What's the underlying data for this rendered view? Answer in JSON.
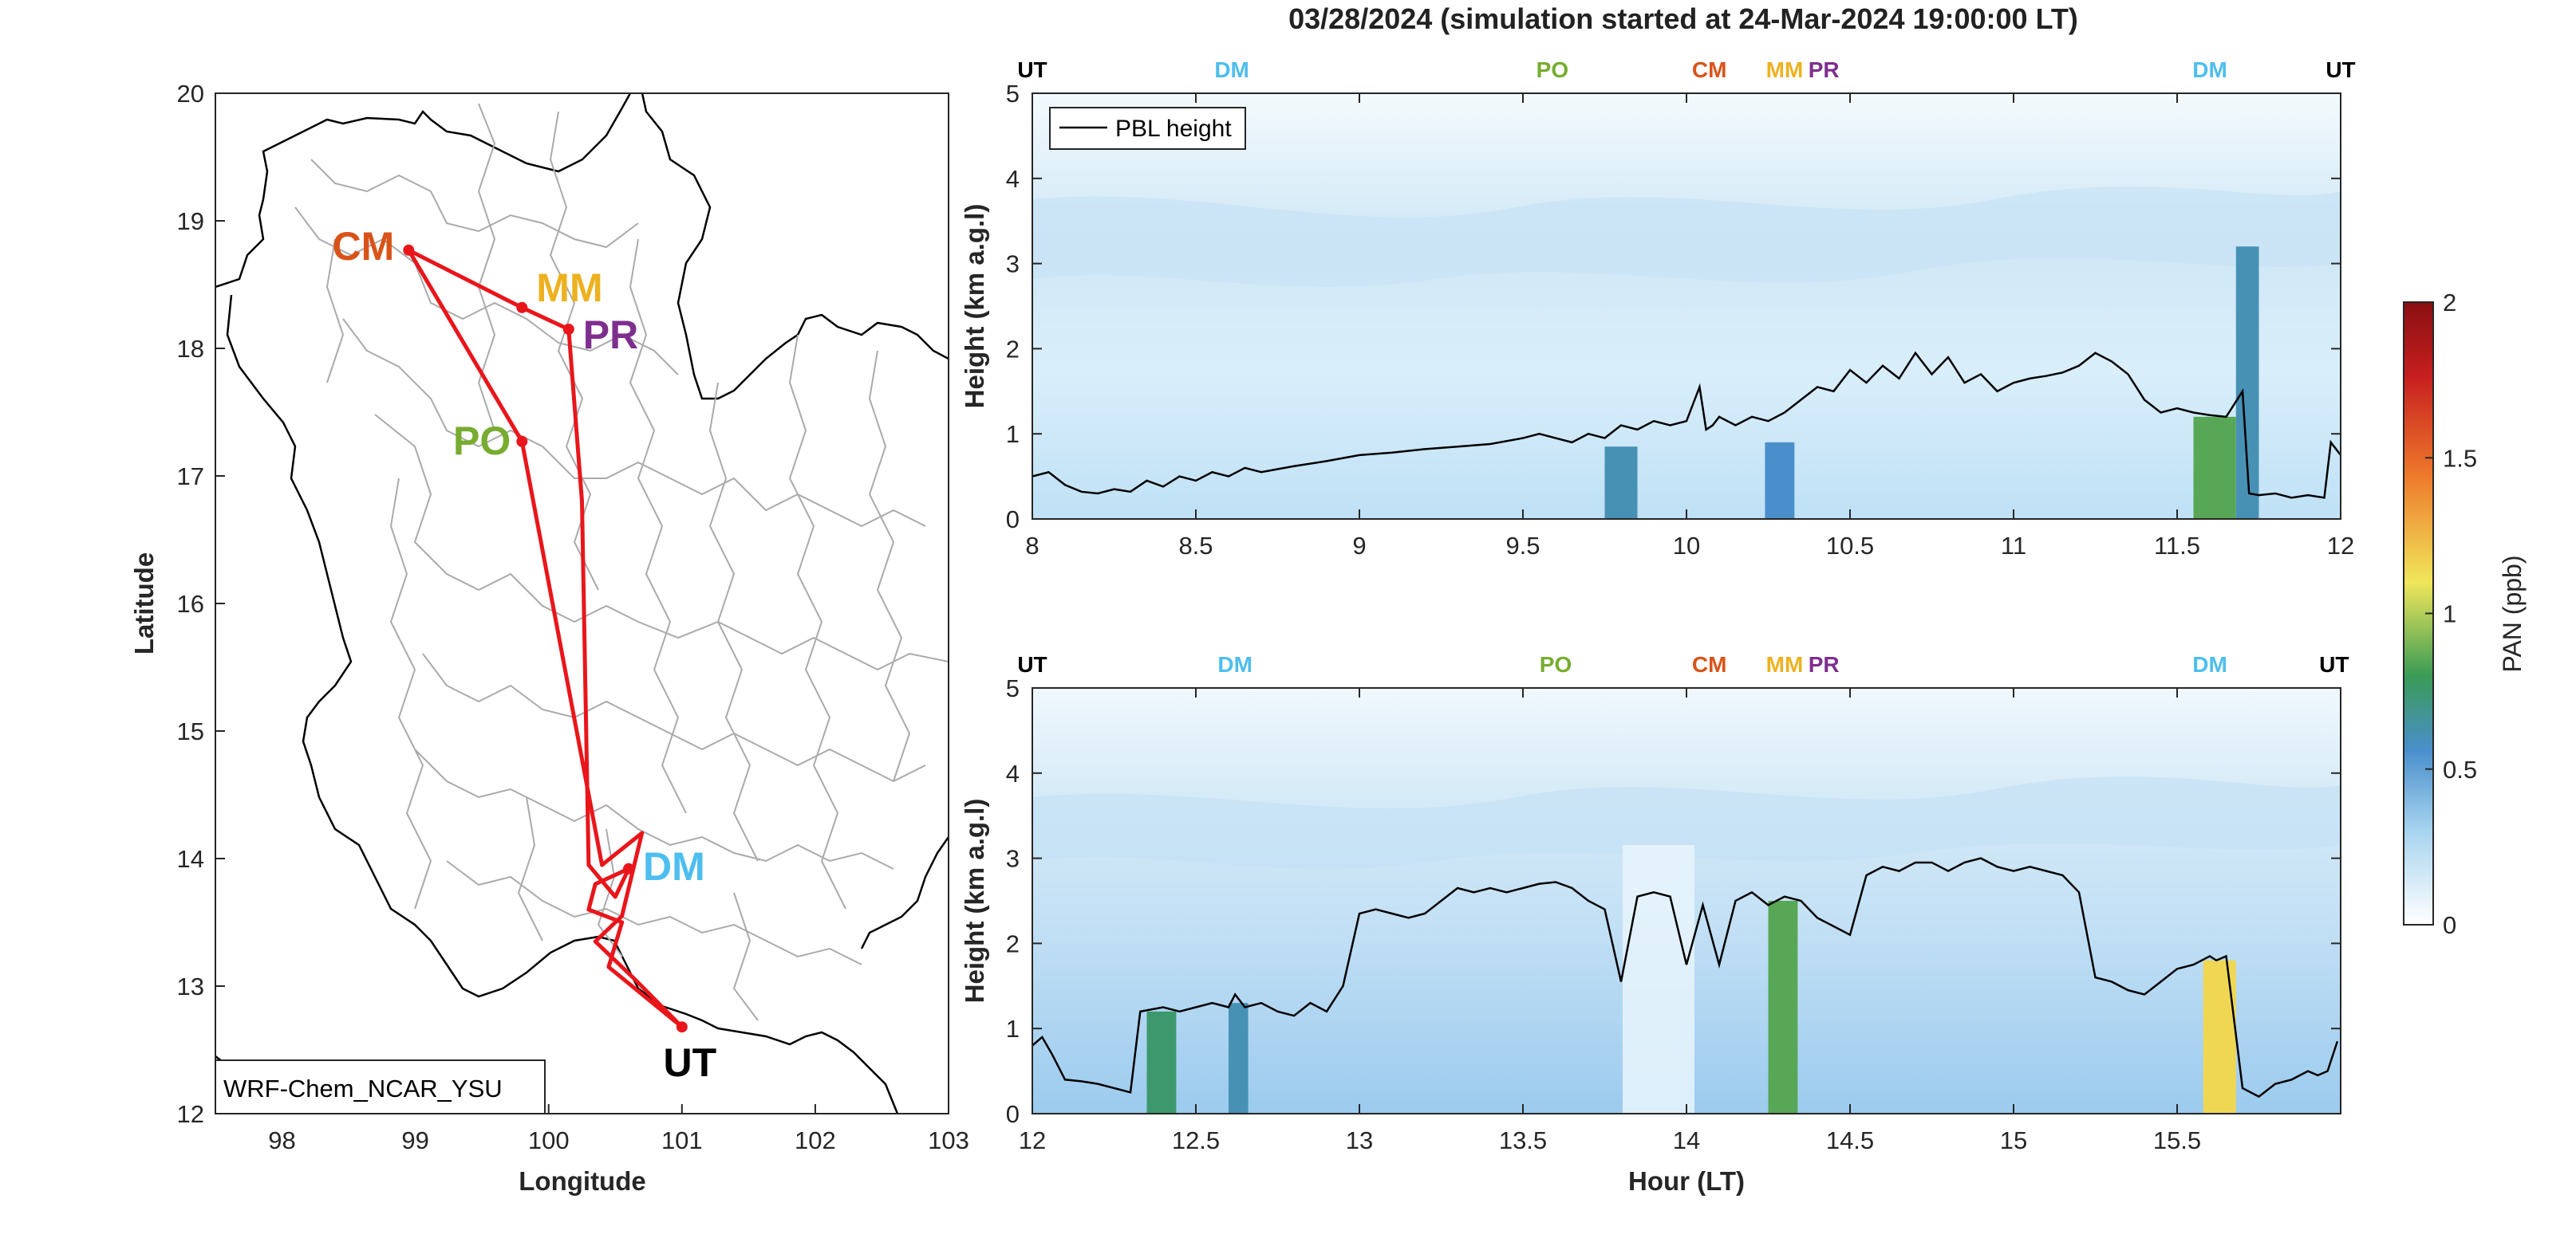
{
  "figure": {
    "title": "03/28/2024 (simulation started at 24-Mar-2024 19:00:00 LT)"
  },
  "colors": {
    "track": "#e8161b",
    "pbl_line": "#000000",
    "border": "#aaaaaa",
    "UT": "#000000",
    "DM": "#4dbeee",
    "PO": "#77ac30",
    "CM": "#d95319",
    "MM": "#edb120",
    "PR": "#7e2f8e"
  },
  "chart_data": [
    {
      "type": "map",
      "name": "flight-track-map",
      "xlabel": "Longitude",
      "ylabel": "Latitude",
      "xlim": [
        97.5,
        103
      ],
      "ylim": [
        12,
        20
      ],
      "xticks": [
        98,
        99,
        100,
        101,
        102,
        103
      ],
      "yticks": [
        12,
        13,
        14,
        15,
        16,
        17,
        18,
        19,
        20
      ],
      "annotation": "WRF-Chem_NCAR_YSU",
      "stations": [
        {
          "label": "CM",
          "lon": 98.95,
          "lat": 18.77
        },
        {
          "label": "MM",
          "lon": 99.8,
          "lat": 18.32
        },
        {
          "label": "PR",
          "lon": 100.15,
          "lat": 18.15
        },
        {
          "label": "PO",
          "lon": 99.8,
          "lat": 17.27
        },
        {
          "label": "DM",
          "lon": 100.6,
          "lat": 13.92
        },
        {
          "label": "UT",
          "lon": 101.0,
          "lat": 12.68
        }
      ],
      "track": [
        [
          101.0,
          12.68
        ],
        [
          100.45,
          13.15
        ],
        [
          100.55,
          13.5
        ],
        [
          100.3,
          13.6
        ],
        [
          100.35,
          13.8
        ],
        [
          100.6,
          13.92
        ],
        [
          100.5,
          13.7
        ],
        [
          100.3,
          13.95
        ],
        [
          100.25,
          16.8
        ],
        [
          100.15,
          18.15
        ],
        [
          99.8,
          18.32
        ],
        [
          98.95,
          18.77
        ],
        [
          99.8,
          17.27
        ],
        [
          100.4,
          13.95
        ],
        [
          100.7,
          14.2
        ],
        [
          100.55,
          13.55
        ],
        [
          100.35,
          13.35
        ],
        [
          100.65,
          13.05
        ],
        [
          101.0,
          12.68
        ]
      ]
    },
    {
      "type": "heatmap",
      "name": "pan-curtain-upper",
      "xlabel": "",
      "ylabel": "Height (km a.g.l)",
      "xlim": [
        8,
        12
      ],
      "ylim": [
        0,
        5
      ],
      "xticks": [
        8,
        8.5,
        9,
        9.5,
        10,
        10.5,
        11,
        11.5,
        12
      ],
      "yticks": [
        0,
        1,
        2,
        3,
        4,
        5
      ],
      "legend": [
        "PBL height"
      ],
      "station_marks": [
        {
          "label": "UT",
          "x": 8.0
        },
        {
          "label": "DM",
          "x": 8.61
        },
        {
          "label": "PO",
          "x": 9.59
        },
        {
          "label": "CM",
          "x": 10.07
        },
        {
          "label": "MM",
          "x": 10.3
        },
        {
          "label": "PR",
          "x": 10.42
        },
        {
          "label": "DM",
          "x": 11.6
        },
        {
          "label": "UT",
          "x": 12.0
        }
      ],
      "pbl_height": {
        "x": [
          8.0,
          8.05,
          8.1,
          8.15,
          8.2,
          8.25,
          8.3,
          8.35,
          8.4,
          8.45,
          8.5,
          8.55,
          8.6,
          8.65,
          8.7,
          8.8,
          8.9,
          9.0,
          9.1,
          9.2,
          9.3,
          9.4,
          9.5,
          9.55,
          9.6,
          9.65,
          9.7,
          9.75,
          9.8,
          9.85,
          9.9,
          9.95,
          10.0,
          10.04,
          10.06,
          10.08,
          10.1,
          10.15,
          10.2,
          10.25,
          10.3,
          10.35,
          10.4,
          10.45,
          10.5,
          10.55,
          10.6,
          10.65,
          10.7,
          10.75,
          10.8,
          10.85,
          10.9,
          10.95,
          11.0,
          11.05,
          11.1,
          11.15,
          11.2,
          11.25,
          11.3,
          11.35,
          11.4,
          11.45,
          11.5,
          11.55,
          11.6,
          11.65,
          11.7,
          11.72,
          11.75,
          11.8,
          11.85,
          11.9,
          11.95,
          11.97,
          12.0
        ],
        "y": [
          0.5,
          0.55,
          0.4,
          0.32,
          0.3,
          0.35,
          0.32,
          0.45,
          0.38,
          0.5,
          0.45,
          0.55,
          0.5,
          0.6,
          0.55,
          0.62,
          0.68,
          0.75,
          0.78,
          0.82,
          0.85,
          0.88,
          0.95,
          1.0,
          0.95,
          0.9,
          1.0,
          0.95,
          1.1,
          1.05,
          1.15,
          1.1,
          1.15,
          1.55,
          1.05,
          1.1,
          1.2,
          1.1,
          1.2,
          1.15,
          1.25,
          1.4,
          1.55,
          1.5,
          1.75,
          1.6,
          1.8,
          1.65,
          1.95,
          1.7,
          1.9,
          1.6,
          1.7,
          1.5,
          1.6,
          1.65,
          1.68,
          1.72,
          1.8,
          1.95,
          1.85,
          1.7,
          1.4,
          1.25,
          1.3,
          1.25,
          1.22,
          1.2,
          1.5,
          0.3,
          0.28,
          0.3,
          0.25,
          0.28,
          0.25,
          0.9,
          0.75
        ]
      },
      "columns": [
        {
          "x": [
            9.75,
            9.85
          ],
          "z": 0.6,
          "top": 0.85
        },
        {
          "x": [
            10.24,
            10.33
          ],
          "z": 0.55,
          "top": 0.9
        },
        {
          "x": [
            11.55,
            11.68
          ],
          "z": 0.85,
          "top": 1.2
        },
        {
          "x": [
            11.68,
            11.75
          ],
          "z": 0.6,
          "top": 3.2
        }
      ]
    },
    {
      "type": "heatmap",
      "name": "pan-curtain-lower",
      "xlabel": "Hour (LT)",
      "ylabel": "Height (km a.g.l)",
      "xlim": [
        12,
        16
      ],
      "ylim": [
        0,
        5
      ],
      "xticks": [
        12,
        12.5,
        13,
        13.5,
        14,
        14.5,
        15,
        15.5
      ],
      "yticks": [
        0,
        1,
        2,
        3,
        4,
        5
      ],
      "station_marks": [
        {
          "label": "UT",
          "x": 12.0
        },
        {
          "label": "DM",
          "x": 12.62
        },
        {
          "label": "PO",
          "x": 13.6
        },
        {
          "label": "CM",
          "x": 14.07
        },
        {
          "label": "MM",
          "x": 14.3
        },
        {
          "label": "PR",
          "x": 14.42
        },
        {
          "label": "DM",
          "x": 15.6
        },
        {
          "label": "UT",
          "x": 15.98
        }
      ],
      "pbl_height": {
        "x": [
          12.0,
          12.03,
          12.06,
          12.1,
          12.15,
          12.2,
          12.25,
          12.3,
          12.33,
          12.4,
          12.45,
          12.5,
          12.55,
          12.6,
          12.62,
          12.65,
          12.7,
          12.75,
          12.8,
          12.85,
          12.9,
          12.95,
          13.0,
          13.05,
          13.1,
          13.15,
          13.2,
          13.25,
          13.3,
          13.35,
          13.4,
          13.45,
          13.5,
          13.55,
          13.6,
          13.65,
          13.7,
          13.75,
          13.8,
          13.85,
          13.9,
          13.95,
          14.0,
          14.05,
          14.1,
          14.15,
          14.2,
          14.25,
          14.3,
          14.35,
          14.4,
          14.45,
          14.5,
          14.55,
          14.6,
          14.65,
          14.7,
          14.75,
          14.8,
          14.85,
          14.9,
          14.95,
          15.0,
          15.05,
          15.1,
          15.15,
          15.2,
          15.25,
          15.3,
          15.35,
          15.4,
          15.45,
          15.5,
          15.55,
          15.6,
          15.62,
          15.65,
          15.7,
          15.75,
          15.8,
          15.85,
          15.9,
          15.93,
          15.96,
          15.99
        ],
        "y": [
          0.8,
          0.9,
          0.7,
          0.4,
          0.38,
          0.35,
          0.3,
          0.25,
          1.2,
          1.25,
          1.2,
          1.25,
          1.3,
          1.25,
          1.4,
          1.25,
          1.3,
          1.2,
          1.15,
          1.3,
          1.2,
          1.5,
          2.35,
          2.4,
          2.35,
          2.3,
          2.35,
          2.5,
          2.65,
          2.6,
          2.65,
          2.6,
          2.65,
          2.7,
          2.72,
          2.65,
          2.5,
          2.4,
          1.55,
          2.55,
          2.6,
          2.55,
          1.75,
          2.45,
          1.75,
          2.5,
          2.6,
          2.45,
          2.55,
          2.5,
          2.3,
          2.2,
          2.1,
          2.8,
          2.9,
          2.85,
          2.95,
          2.95,
          2.85,
          2.95,
          3.0,
          2.9,
          2.85,
          2.9,
          2.85,
          2.8,
          2.6,
          1.6,
          1.55,
          1.45,
          1.4,
          1.55,
          1.7,
          1.75,
          1.85,
          1.8,
          1.85,
          0.3,
          0.2,
          0.35,
          0.4,
          0.5,
          0.45,
          0.5,
          0.85
        ]
      },
      "columns": [
        {
          "x": [
            12.35,
            12.44
          ],
          "z": 0.75,
          "top": 1.2
        },
        {
          "x": [
            12.6,
            12.66
          ],
          "z": 0.6,
          "top": 1.3
        },
        {
          "x": [
            14.25,
            14.34
          ],
          "z": 0.85,
          "top": 2.5
        },
        {
          "x": [
            15.58,
            15.68
          ],
          "z": 1.15,
          "top": 1.8
        }
      ]
    },
    {
      "type": "colorbar",
      "name": "pan-colorbar",
      "label": "PAN (ppb)",
      "lim": [
        0,
        2
      ],
      "ticks": [
        0,
        0.5,
        1,
        1.5,
        2
      ],
      "colormap": [
        "#ffffff",
        "#a8d4ef",
        "#4a8fcc",
        "#3a9b55",
        "#f0e65a",
        "#ee7a2c",
        "#c71f1f",
        "#8a0f12"
      ]
    }
  ]
}
